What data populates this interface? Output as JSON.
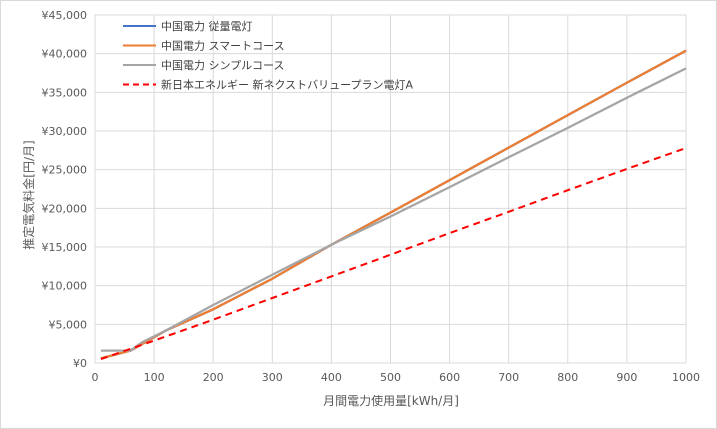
{
  "chart_data": {
    "type": "line",
    "title": "",
    "xlabel": "月間電力使用量[kWh/月]",
    "ylabel": "推定電気料金[円/月]",
    "xlim": [
      0,
      1000
    ],
    "ylim": [
      0,
      45000
    ],
    "x_ticks": [
      0,
      100,
      200,
      300,
      400,
      500,
      600,
      700,
      800,
      900,
      1000
    ],
    "y_ticks": [
      0,
      5000,
      10000,
      15000,
      20000,
      25000,
      30000,
      35000,
      40000,
      45000
    ],
    "x_tick_labels": [
      "0",
      "100",
      "200",
      "300",
      "400",
      "500",
      "600",
      "700",
      "800",
      "900",
      "1000"
    ],
    "y_tick_labels": [
      "¥0",
      "¥5,000",
      "¥10,000",
      "¥15,000",
      "¥20,000",
      "¥25,000",
      "¥30,000",
      "¥35,000",
      "¥40,000",
      "¥45,000"
    ],
    "grid": "horizontal and vertical major gridlines",
    "legend_position": "top-left",
    "series": [
      {
        "name": "中国電力 従量電灯",
        "color": "#4472c4",
        "style": "solid",
        "x": [
          10,
          60,
          120,
          200,
          300,
          400,
          500,
          600,
          700,
          800,
          900,
          1000
        ],
        "y": [
          600,
          1600,
          4200,
          6950,
          10900,
          15300,
          19450,
          23650,
          27850,
          32050,
          36250,
          40400
        ]
      },
      {
        "name": "中国電力 スマートコース",
        "color": "#ed7d31",
        "style": "solid",
        "x": [
          10,
          60,
          120,
          200,
          300,
          400,
          500,
          600,
          700,
          800,
          900,
          1000
        ],
        "y": [
          600,
          1600,
          4200,
          6950,
          10900,
          15300,
          19450,
          23650,
          27850,
          32050,
          36250,
          40400
        ]
      },
      {
        "name": "中国電力 シンプルコース",
        "color": "#a5a5a5",
        "style": "solid",
        "x": [
          10,
          50,
          60,
          80,
          120,
          200,
          300,
          400,
          500,
          600,
          700,
          800,
          900,
          1000
        ],
        "y": [
          1600,
          1600,
          1600,
          2700,
          4200,
          7500,
          11400,
          15300,
          18950,
          22750,
          26600,
          30400,
          34300,
          38100
        ]
      },
      {
        "name": "新日本エネルギー 新ネクストバリュープラン電灯A",
        "color": "#ff0000",
        "style": "dashed",
        "x": [
          10,
          100,
          200,
          300,
          400,
          500,
          600,
          700,
          800,
          900,
          1000
        ],
        "y": [
          500,
          2900,
          5600,
          8400,
          11200,
          14000,
          16800,
          19550,
          22350,
          25100,
          27800
        ]
      }
    ]
  }
}
